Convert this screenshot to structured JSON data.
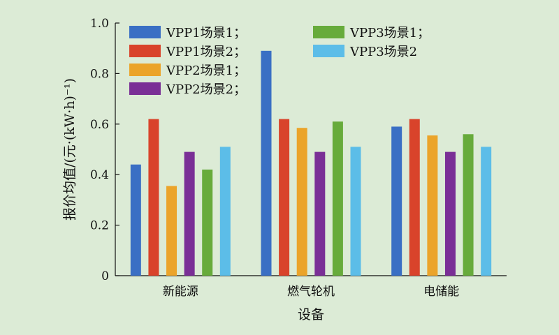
{
  "chart_data": {
    "type": "bar",
    "xlabel": "设备",
    "ylabel": "报价均值/(元·(kW·h)⁻¹)",
    "ylim": [
      0,
      1.0
    ],
    "yticks": [
      "0",
      "0.2",
      "0.4",
      "0.6",
      "0.8",
      "1.0"
    ],
    "ytick_values": [
      0,
      0.2,
      0.4,
      0.6,
      0.8,
      1.0
    ],
    "categories": [
      "新能源",
      "燃气轮机",
      "电储能"
    ],
    "legend_position": "top",
    "series": [
      {
        "name": "VPP1场景1；",
        "color": "#3a6fc4",
        "values": [
          0.44,
          0.89,
          0.59
        ]
      },
      {
        "name": "VPP1场景2；",
        "color": "#d9432b",
        "values": [
          0.62,
          0.62,
          0.62
        ]
      },
      {
        "name": "VPP2场景1；",
        "color": "#eba42a",
        "values": [
          0.355,
          0.585,
          0.555
        ]
      },
      {
        "name": "VPP2场景2；",
        "color": "#7a2f96",
        "values": [
          0.49,
          0.49,
          0.49
        ]
      },
      {
        "name": "VPP3场景1；",
        "color": "#67ab3b",
        "values": [
          0.42,
          0.61,
          0.56
        ]
      },
      {
        "name": "VPP3场景2",
        "color": "#5cbde8",
        "values": [
          0.51,
          0.51,
          0.51
        ]
      }
    ]
  }
}
